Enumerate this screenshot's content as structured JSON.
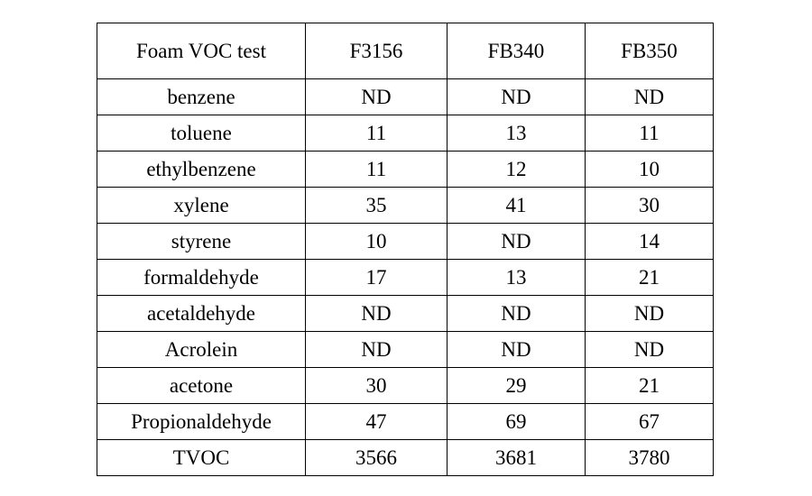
{
  "table": {
    "header": [
      "Foam VOC test",
      "F3156",
      "FB340",
      "FB350"
    ],
    "rows": [
      [
        "benzene",
        "ND",
        "ND",
        "ND"
      ],
      [
        "toluene",
        11,
        13,
        11
      ],
      [
        "ethylbenzene",
        11,
        12,
        10
      ],
      [
        "xylene",
        35,
        41,
        30
      ],
      [
        "styrene",
        10,
        "ND",
        14
      ],
      [
        "formaldehyde",
        17,
        13,
        21
      ],
      [
        "acetaldehyde",
        "ND",
        "ND",
        "ND"
      ],
      [
        "Acrolein",
        "ND",
        "ND",
        "ND"
      ],
      [
        "acetone",
        30,
        29,
        21
      ],
      [
        "Propionaldehyde",
        47,
        69,
        67
      ],
      [
        "TVOC",
        3566,
        3681,
        3780
      ]
    ]
  }
}
